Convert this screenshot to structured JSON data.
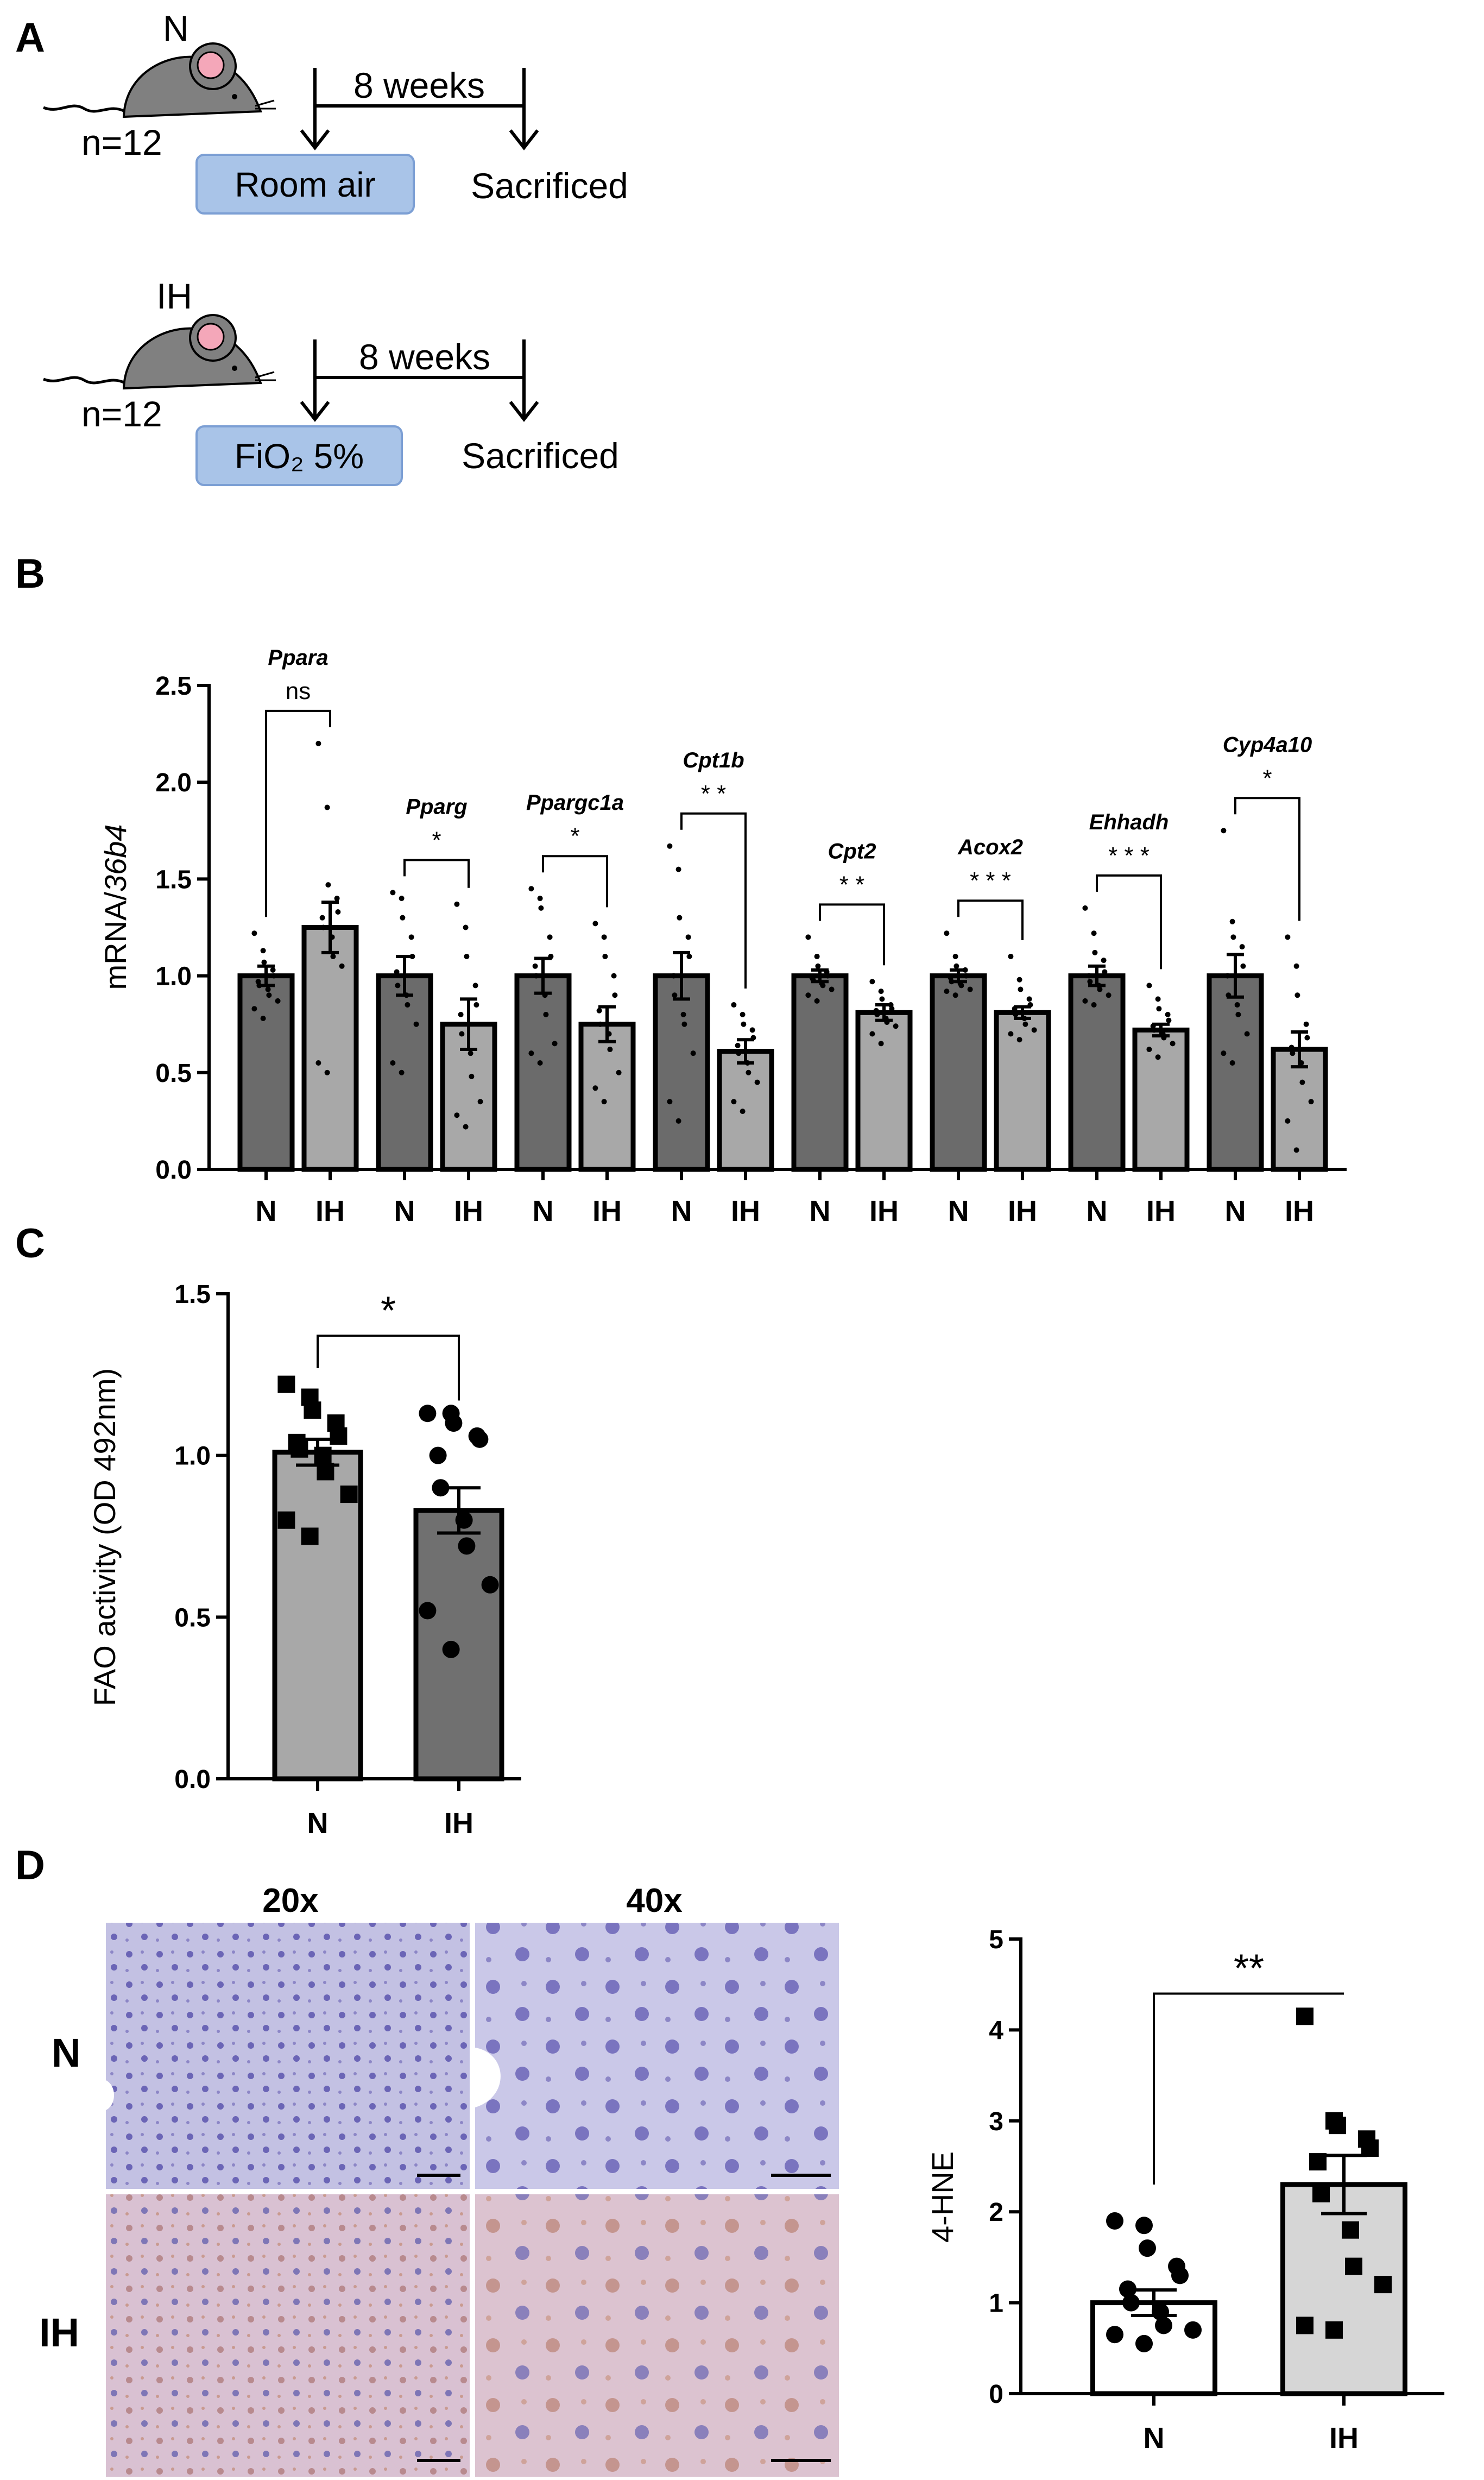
{
  "panels": {
    "a": "A",
    "b": "B",
    "c": "C",
    "d": "D"
  },
  "panel_a": {
    "groups": [
      {
        "mouse_label": "N",
        "n_label": "n=12",
        "duration": "8 weeks",
        "condition": "Room air",
        "endpoint": "Sacrificed"
      },
      {
        "mouse_label": "IH",
        "n_label": "n=12",
        "duration": "8 weeks",
        "condition": "FiO₂ 5%",
        "endpoint": "Sacrificed"
      }
    ],
    "colors": {
      "mouse": "#808080",
      "ear": "#f4a7b9",
      "box_fill": "#a9c4e8",
      "box_border": "#7c9fd4"
    }
  },
  "chart_data": [
    {
      "id": "B",
      "type": "bar",
      "ylabel_prefix": "mRNA/",
      "ylabel_italic": "36b4",
      "ylim": [
        0,
        2.5
      ],
      "yticks": [
        "0.0",
        "0.5",
        "1.0",
        "1.5",
        "2.0",
        "2.5"
      ],
      "group_labels": [
        "N",
        "IH"
      ],
      "bar_colors": {
        "N": "#6b6b6b",
        "IH": "#a8a8a8"
      },
      "genes": [
        {
          "gene": "Ppara",
          "sig": "ns",
          "N": {
            "mean": 1.0,
            "sem": 0.05
          },
          "IH": {
            "mean": 1.25,
            "sem": 0.13
          },
          "N_points": [
            1.22,
            1.13,
            1.07,
            1.03,
            1.0,
            0.97,
            0.95,
            0.93,
            0.9,
            0.87,
            0.83,
            0.78
          ],
          "IH_points": [
            2.2,
            1.87,
            1.47,
            1.4,
            1.33,
            1.3,
            1.25,
            1.2,
            1.1,
            1.05,
            0.55,
            0.5
          ]
        },
        {
          "gene": "Pparg",
          "sig": "*",
          "N": {
            "mean": 1.0,
            "sem": 0.1
          },
          "IH": {
            "mean": 0.75,
            "sem": 0.13
          },
          "N_points": [
            1.43,
            1.4,
            1.3,
            1.2,
            1.1,
            1.02,
            0.95,
            0.9,
            0.85,
            0.75,
            0.55,
            0.5
          ],
          "IH_points": [
            1.37,
            1.25,
            1.1,
            0.95,
            0.85,
            0.8,
            0.7,
            0.6,
            0.48,
            0.35,
            0.28,
            0.22
          ]
        },
        {
          "gene": "Ppargc1a",
          "sig": "*",
          "N": {
            "mean": 1.0,
            "sem": 0.09
          },
          "IH": {
            "mean": 0.75,
            "sem": 0.09
          },
          "N_points": [
            1.45,
            1.4,
            1.35,
            1.2,
            1.1,
            1.05,
            1.0,
            0.9,
            0.8,
            0.65,
            0.6,
            0.55
          ],
          "IH_points": [
            1.27,
            1.2,
            1.1,
            1.0,
            0.9,
            0.82,
            0.75,
            0.7,
            0.62,
            0.5,
            0.42,
            0.35
          ]
        },
        {
          "gene": "Cpt1b",
          "sig": "* *",
          "N": {
            "mean": 1.0,
            "sem": 0.12
          },
          "IH": {
            "mean": 0.61,
            "sem": 0.06
          },
          "N_points": [
            1.67,
            1.55,
            1.3,
            1.2,
            1.1,
            1.0,
            0.9,
            0.8,
            0.75,
            0.6,
            0.35,
            0.25
          ],
          "IH_points": [
            0.85,
            0.8,
            0.75,
            0.72,
            0.68,
            0.64,
            0.6,
            0.55,
            0.5,
            0.45,
            0.35,
            0.3
          ]
        },
        {
          "gene": "Cpt2",
          "sig": "* *",
          "N": {
            "mean": 1.0,
            "sem": 0.03
          },
          "IH": {
            "mean": 0.81,
            "sem": 0.04
          },
          "N_points": [
            1.2,
            1.1,
            1.05,
            1.02,
            1.0,
            0.99,
            0.98,
            0.96,
            0.95,
            0.93,
            0.9,
            0.87
          ],
          "IH_points": [
            0.97,
            0.92,
            0.88,
            0.85,
            0.83,
            0.82,
            0.8,
            0.78,
            0.76,
            0.74,
            0.7,
            0.65
          ]
        },
        {
          "gene": "Acox2",
          "sig": "* * *",
          "N": {
            "mean": 1.0,
            "sem": 0.03
          },
          "IH": {
            "mean": 0.81,
            "sem": 0.03
          },
          "N_points": [
            1.22,
            1.1,
            1.05,
            1.03,
            1.0,
            0.99,
            0.97,
            0.96,
            0.95,
            0.93,
            0.92,
            0.9
          ],
          "IH_points": [
            1.1,
            0.98,
            0.93,
            0.88,
            0.85,
            0.83,
            0.8,
            0.78,
            0.75,
            0.72,
            0.7,
            0.67
          ]
        },
        {
          "gene": "Ehhadh",
          "sig": "* * *",
          "N": {
            "mean": 1.0,
            "sem": 0.05
          },
          "IH": {
            "mean": 0.72,
            "sem": 0.03
          },
          "N_points": [
            1.35,
            1.22,
            1.12,
            1.08,
            1.02,
            1.0,
            0.97,
            0.95,
            0.93,
            0.9,
            0.87,
            0.85
          ],
          "IH_points": [
            0.95,
            0.88,
            0.83,
            0.8,
            0.77,
            0.74,
            0.72,
            0.7,
            0.68,
            0.65,
            0.62,
            0.58
          ]
        },
        {
          "gene": "Cyp4a10",
          "sig": "*",
          "N": {
            "mean": 1.0,
            "sem": 0.11
          },
          "IH": {
            "mean": 0.62,
            "sem": 0.09
          },
          "N_points": [
            1.75,
            1.28,
            1.2,
            1.15,
            1.05,
            1.0,
            0.9,
            0.85,
            0.8,
            0.7,
            0.6,
            0.55
          ],
          "IH_points": [
            1.2,
            1.05,
            0.9,
            0.75,
            0.68,
            0.63,
            0.6,
            0.55,
            0.45,
            0.35,
            0.25,
            0.1
          ]
        }
      ]
    },
    {
      "id": "C",
      "type": "bar",
      "ylabel": "FAO activity (OD 492nm)",
      "ylim": [
        0,
        1.5
      ],
      "yticks": [
        "0.0",
        "0.5",
        "1.0",
        "1.5"
      ],
      "categories": [
        "N",
        "IH"
      ],
      "values": [
        1.01,
        0.83
      ],
      "sem": [
        0.04,
        0.07
      ],
      "sig": "*",
      "bar_colors": [
        "#a8a8a8",
        "#707070"
      ],
      "points": {
        "N": [
          1.22,
          1.18,
          1.14,
          1.1,
          1.06,
          1.04,
          1.02,
          1.0,
          0.95,
          0.88,
          0.8,
          0.75
        ],
        "IH": [
          1.13,
          1.13,
          1.1,
          1.06,
          1.05,
          1.0,
          0.9,
          0.8,
          0.72,
          0.6,
          0.52,
          0.4
        ]
      }
    },
    {
      "id": "D",
      "type": "bar",
      "ylabel": "4-HNE",
      "ylim": [
        0,
        5
      ],
      "yticks": [
        "0",
        "1",
        "2",
        "3",
        "4",
        "5"
      ],
      "categories": [
        "N",
        "IH"
      ],
      "values": [
        1.0,
        2.3
      ],
      "sem": [
        0.14,
        0.32
      ],
      "sig": "**",
      "bar_colors": [
        "#ffffff",
        "#d6d6d6"
      ],
      "points": {
        "N": [
          1.9,
          1.85,
          1.6,
          1.4,
          1.3,
          1.15,
          1.0,
          0.9,
          0.75,
          0.7,
          0.65,
          0.55
        ],
        "IH": [
          4.15,
          3.0,
          2.95,
          2.8,
          2.7,
          2.55,
          2.2,
          1.8,
          1.4,
          1.2,
          0.75,
          0.7
        ]
      }
    }
  ],
  "panel_d_micrographs": {
    "magnifications": [
      "20x",
      "40x"
    ],
    "rows": [
      "N",
      "IH"
    ],
    "colors": {
      "n_bg": "#c3c1e3",
      "ih_bg": "#d9c1d2",
      "n_cell": "#9a92cf",
      "ih_cell": "#c89690",
      "nucleus": "#5a55a8"
    }
  }
}
